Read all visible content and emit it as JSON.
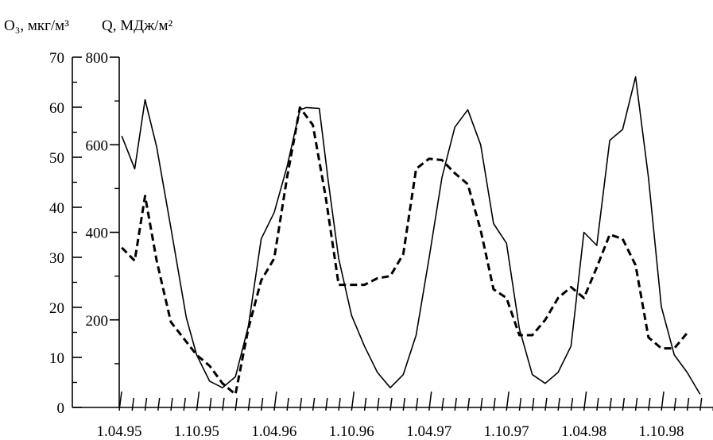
{
  "chart_data": {
    "type": "line",
    "axis_titles": {
      "left": "O₃, мкг/м³",
      "right": "Q, МДж/м²"
    },
    "left_axis": {
      "ylim": [
        0,
        70
      ],
      "major_ticks": [
        "0",
        "10",
        "20",
        "30",
        "40",
        "50",
        "60",
        "70"
      ],
      "minor_step": 5
    },
    "right_axis": {
      "ylim": [
        0,
        800
      ],
      "major_ticks": [
        "200",
        "400",
        "600",
        "800"
      ],
      "minor_step": 100
    },
    "x_axis": {
      "ticks": [
        "1.04.95",
        "1.10.95",
        "1.04.96",
        "1.10.96",
        "1.04.97",
        "1.10.97",
        "1.04.98",
        "1.10.98"
      ],
      "months_per_major": 6
    },
    "grid": false,
    "series": [
      {
        "style": "solid",
        "axis": "right",
        "color": "#000000",
        "points": [
          [
            0.2,
            620
          ],
          [
            1.2,
            545
          ],
          [
            2.0,
            703
          ],
          [
            2.9,
            595
          ],
          [
            4.0,
            410
          ],
          [
            5.2,
            205
          ],
          [
            6.0,
            120
          ],
          [
            7.0,
            60
          ],
          [
            8.0,
            45
          ],
          [
            9.0,
            70
          ],
          [
            10.0,
            185
          ],
          [
            11.0,
            385
          ],
          [
            12.0,
            445
          ],
          [
            13.0,
            550
          ],
          [
            14.0,
            680
          ],
          [
            14.5,
            685
          ],
          [
            15.5,
            683
          ],
          [
            16.2,
            515
          ],
          [
            17.0,
            340
          ],
          [
            18.0,
            210
          ],
          [
            19.0,
            140
          ],
          [
            20.0,
            80
          ],
          [
            21.0,
            45
          ],
          [
            22.0,
            75
          ],
          [
            23.0,
            165
          ],
          [
            24.0,
            340
          ],
          [
            25.0,
            525
          ],
          [
            26.0,
            640
          ],
          [
            27.0,
            680
          ],
          [
            28.0,
            600
          ],
          [
            29.0,
            420
          ],
          [
            30.0,
            375
          ],
          [
            31.0,
            180
          ],
          [
            32.0,
            75
          ],
          [
            33.0,
            55
          ],
          [
            34.0,
            80
          ],
          [
            35.0,
            140
          ],
          [
            36.0,
            400
          ],
          [
            37.0,
            370
          ],
          [
            38.0,
            610
          ],
          [
            39.0,
            635
          ],
          [
            40.0,
            755
          ],
          [
            41.0,
            525
          ],
          [
            42.0,
            230
          ],
          [
            43.0,
            120
          ],
          [
            44.0,
            80
          ],
          [
            45.0,
            30
          ]
        ]
      },
      {
        "style": "dashed",
        "axis": "right",
        "color": "#000000",
        "points": [
          [
            0.2,
            365
          ],
          [
            1.2,
            335
          ],
          [
            2.0,
            483
          ],
          [
            2.9,
            335
          ],
          [
            4.0,
            195
          ],
          [
            5.2,
            150
          ],
          [
            6.0,
            120
          ],
          [
            7.0,
            95
          ],
          [
            8.0,
            55
          ],
          [
            9.0,
            30
          ],
          [
            10.0,
            180
          ],
          [
            11.0,
            290
          ],
          [
            12.0,
            340
          ],
          [
            13.0,
            525
          ],
          [
            14.0,
            685
          ],
          [
            15.0,
            645
          ],
          [
            16.0,
            480
          ],
          [
            17.0,
            280
          ],
          [
            18.0,
            280
          ],
          [
            19.0,
            280
          ],
          [
            20.0,
            295
          ],
          [
            21.0,
            300
          ],
          [
            22.0,
            350
          ],
          [
            23.0,
            545
          ],
          [
            24.0,
            568
          ],
          [
            25.0,
            565
          ],
          [
            26.0,
            535
          ],
          [
            27.0,
            510
          ],
          [
            28.0,
            405
          ],
          [
            29.0,
            270
          ],
          [
            30.0,
            250
          ],
          [
            31.0,
            165
          ],
          [
            32.0,
            165
          ],
          [
            33.0,
            200
          ],
          [
            34.0,
            250
          ],
          [
            35.0,
            275
          ],
          [
            36.0,
            250
          ],
          [
            37.0,
            320
          ],
          [
            38.0,
            395
          ],
          [
            39.0,
            385
          ],
          [
            40.0,
            325
          ],
          [
            41.0,
            160
          ],
          [
            42.0,
            135
          ],
          [
            43.0,
            135
          ],
          [
            44.0,
            170
          ]
        ]
      }
    ]
  }
}
